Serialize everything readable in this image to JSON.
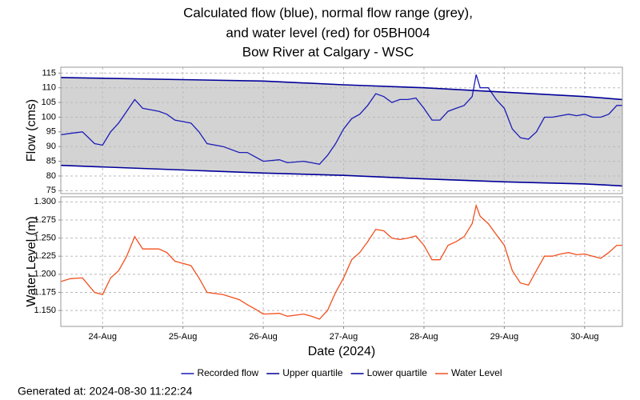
{
  "chart_data": [
    {
      "type": "line",
      "title": [
        "Calculated flow (blue), normal flow range (grey),",
        "and water level (red) for 05BH004",
        "Bow River at Calgary - WSC"
      ],
      "ylabel": "Flow (cms)",
      "xlim": [
        23.48,
        30.47
      ],
      "ylim": [
        74,
        117
      ],
      "yticks": [
        75,
        80,
        85,
        90,
        95,
        100,
        105,
        110,
        115
      ],
      "grid": true,
      "band_color": "#d3d3d3",
      "series": [
        {
          "name": "Recorded flow",
          "color": "#1c1cb8",
          "x": [
            23.48,
            23.6,
            23.75,
            23.9,
            24.0,
            24.1,
            24.2,
            24.3,
            24.4,
            24.5,
            24.7,
            24.8,
            24.9,
            25.0,
            25.1,
            25.2,
            25.3,
            25.5,
            25.7,
            25.8,
            25.9,
            26.0,
            26.2,
            26.3,
            26.5,
            26.6,
            26.7,
            26.8,
            26.9,
            27.0,
            27.1,
            27.2,
            27.3,
            27.4,
            27.5,
            27.6,
            27.7,
            27.8,
            27.9,
            28.0,
            28.1,
            28.2,
            28.3,
            28.4,
            28.5,
            28.6,
            28.65,
            28.7,
            28.8,
            28.9,
            29.0,
            29.1,
            29.2,
            29.3,
            29.4,
            29.5,
            29.6,
            29.7,
            29.8,
            29.9,
            30.0,
            30.1,
            30.2,
            30.3,
            30.4,
            30.47
          ],
          "values": [
            94,
            94.5,
            95,
            91,
            90.5,
            95,
            98,
            102,
            106,
            103,
            102,
            101,
            99,
            98.5,
            98,
            95,
            91,
            90,
            88,
            88,
            86.5,
            85,
            85.5,
            84.5,
            85,
            84.5,
            84,
            87,
            91,
            96,
            99.5,
            101,
            104,
            108,
            107,
            105,
            106,
            106,
            106.5,
            103,
            99,
            99,
            102,
            103,
            104,
            107,
            114.5,
            110,
            110,
            106,
            103,
            96,
            93,
            92.5,
            95,
            100,
            100,
            100.5,
            101,
            100.5,
            101,
            100,
            100,
            101,
            104,
            104
          ]
        },
        {
          "name": "Upper quartile",
          "color": "#000099",
          "x": [
            23.48,
            26,
            27,
            28,
            29,
            30,
            30.47
          ],
          "values": [
            113.5,
            112.3,
            111,
            110,
            108.5,
            107,
            106
          ]
        },
        {
          "name": "Lower quartile",
          "color": "#000099",
          "x": [
            23.48,
            26,
            27,
            28,
            29,
            30,
            30.47
          ],
          "values": [
            83.6,
            81,
            80.2,
            79,
            78,
            77.3,
            76.6
          ]
        }
      ]
    },
    {
      "type": "line",
      "ylabel": "Water Level (m)",
      "xlabel": "Date (2024)",
      "annotation": "Generated at: 2024-08-30 11:22:24",
      "xlim": [
        23.48,
        30.47
      ],
      "xticks": [
        {
          "value": 24,
          "label": "24-Aug"
        },
        {
          "value": 25,
          "label": "25-Aug"
        },
        {
          "value": 26,
          "label": "26-Aug"
        },
        {
          "value": 27,
          "label": "27-Aug"
        },
        {
          "value": 28,
          "label": "28-Aug"
        },
        {
          "value": 29,
          "label": "29-Aug"
        },
        {
          "value": 30,
          "label": "30-Aug"
        }
      ],
      "ylim": [
        1.128,
        1.307
      ],
      "yticks": [
        {
          "value": 1.15,
          "label": "1.150"
        },
        1.175,
        {
          "value": 1.2,
          "label": "1.200"
        },
        1.225,
        {
          "value": 1.25,
          "label": "1.250"
        },
        1.275,
        {
          "value": 1.3,
          "label": "1.300"
        }
      ],
      "grid": true,
      "series": [
        {
          "name": "Water Level",
          "color": "#f2501e",
          "x": [
            23.48,
            23.6,
            23.75,
            23.9,
            24.0,
            24.1,
            24.2,
            24.3,
            24.4,
            24.5,
            24.7,
            24.8,
            24.9,
            25.0,
            25.1,
            25.2,
            25.3,
            25.5,
            25.7,
            25.8,
            25.9,
            26.0,
            26.2,
            26.3,
            26.5,
            26.6,
            26.7,
            26.8,
            26.9,
            27.0,
            27.1,
            27.2,
            27.3,
            27.4,
            27.5,
            27.6,
            27.7,
            27.8,
            27.9,
            28.0,
            28.1,
            28.2,
            28.3,
            28.4,
            28.5,
            28.6,
            28.65,
            28.7,
            28.8,
            28.9,
            29.0,
            29.1,
            29.2,
            29.3,
            29.4,
            29.5,
            29.6,
            29.7,
            29.8,
            29.9,
            30.0,
            30.1,
            30.2,
            30.3,
            30.4,
            30.47
          ],
          "values": [
            1.19,
            1.194,
            1.195,
            1.175,
            1.172,
            1.195,
            1.205,
            1.225,
            1.252,
            1.235,
            1.235,
            1.23,
            1.218,
            1.215,
            1.212,
            1.195,
            1.175,
            1.172,
            1.165,
            1.158,
            1.152,
            1.145,
            1.146,
            1.142,
            1.145,
            1.142,
            1.138,
            1.15,
            1.175,
            1.195,
            1.22,
            1.23,
            1.245,
            1.262,
            1.26,
            1.25,
            1.248,
            1.25,
            1.253,
            1.24,
            1.22,
            1.22,
            1.24,
            1.245,
            1.252,
            1.27,
            1.295,
            1.28,
            1.27,
            1.255,
            1.24,
            1.205,
            1.188,
            1.185,
            1.205,
            1.225,
            1.225,
            1.228,
            1.23,
            1.227,
            1.228,
            1.225,
            1.222,
            1.23,
            1.24,
            1.24
          ]
        }
      ]
    }
  ]
}
